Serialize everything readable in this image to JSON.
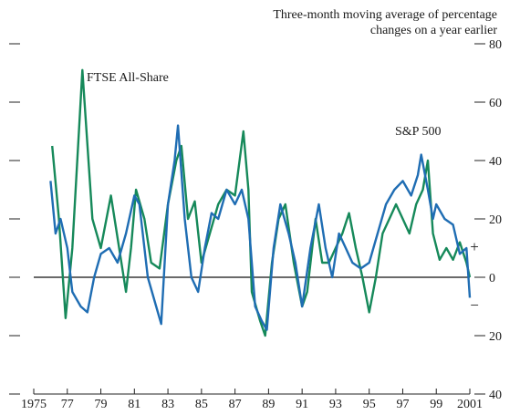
{
  "chart_data": {
    "type": "line",
    "note": [
      "Three-month moving average of percentage",
      "changes on a year earlier"
    ],
    "sign_labels": [
      "+",
      "−"
    ],
    "xlim": [
      1975,
      2001
    ],
    "xticks": [
      {
        "value": 1975,
        "label": "1975"
      },
      {
        "value": 1977,
        "label": "77"
      },
      {
        "value": 1979,
        "label": "79"
      },
      {
        "value": 1981,
        "label": "81"
      },
      {
        "value": 1983,
        "label": "83"
      },
      {
        "value": 1985,
        "label": "85"
      },
      {
        "value": 1987,
        "label": "87"
      },
      {
        "value": 1989,
        "label": "89"
      },
      {
        "value": 1991,
        "label": "91"
      },
      {
        "value": 1993,
        "label": "93"
      },
      {
        "value": 1995,
        "label": "95"
      },
      {
        "value": 1997,
        "label": "97"
      },
      {
        "value": 1999,
        "label": "99"
      },
      {
        "value": 2001,
        "label": "2001"
      }
    ],
    "ylim": [
      -40,
      80
    ],
    "yticks": [
      {
        "value": -40,
        "label": "40"
      },
      {
        "value": -20,
        "label": "20"
      },
      0,
      20,
      40,
      60,
      80
    ],
    "series": [
      {
        "name": "FTSE All-Share",
        "color": "#16895a",
        "x": [
          1976.1,
          1976.5,
          1976.9,
          1977.3,
          1977.9,
          1978.5,
          1979.0,
          1979.6,
          1980.5,
          1980.8,
          1981.1,
          1981.6,
          1982.0,
          1982.5,
          1983.0,
          1983.5,
          1983.8,
          1984.2,
          1984.6,
          1985.0,
          1985.5,
          1986.0,
          1986.5,
          1987.0,
          1987.5,
          1987.8,
          1988.0,
          1988.5,
          1988.8,
          1989.2,
          1989.6,
          1990.0,
          1990.5,
          1991.0,
          1991.3,
          1991.8,
          1992.2,
          1992.6,
          1993.0,
          1993.4,
          1993.8,
          1994.2,
          1994.6,
          1995.0,
          1995.4,
          1995.8,
          1996.2,
          1996.6,
          1997.0,
          1997.4,
          1997.8,
          1998.2,
          1998.5,
          1998.8,
          1999.2,
          1999.6,
          2000.0,
          2000.4,
          2000.8,
          2001.0
        ],
        "values": [
          45,
          20,
          -14,
          10,
          71,
          20,
          10,
          28,
          -5,
          10,
          30,
          20,
          5,
          3,
          25,
          40,
          45,
          20,
          26,
          5,
          15,
          25,
          30,
          28,
          50,
          30,
          -5,
          -15,
          -20,
          5,
          20,
          25,
          5,
          -10,
          -5,
          20,
          5,
          5,
          10,
          15,
          22,
          10,
          0,
          -12,
          0,
          15,
          20,
          25,
          20,
          15,
          25,
          30,
          40,
          15,
          6,
          10,
          6,
          12,
          5,
          0
        ]
      },
      {
        "name": "S&P 500",
        "color": "#1f6db3",
        "x": [
          1976.0,
          1976.3,
          1976.6,
          1977.0,
          1977.3,
          1977.8,
          1978.2,
          1978.6,
          1979.0,
          1979.5,
          1980.0,
          1980.5,
          1981.0,
          1981.3,
          1981.8,
          1982.3,
          1982.6,
          1983.0,
          1983.4,
          1983.6,
          1984.0,
          1984.4,
          1984.8,
          1985.2,
          1985.6,
          1986.0,
          1986.5,
          1987.0,
          1987.4,
          1987.8,
          1988.2,
          1988.6,
          1988.9,
          1989.3,
          1989.7,
          1990.2,
          1990.6,
          1991.0,
          1991.5,
          1992.0,
          1992.4,
          1992.8,
          1993.2,
          1993.6,
          1994.0,
          1994.5,
          1995.0,
          1995.5,
          1996.0,
          1996.5,
          1997.0,
          1997.5,
          1997.9,
          1998.1,
          1998.5,
          1998.8,
          1999.0,
          1999.5,
          2000.0,
          2000.4,
          2000.8,
          2001.0
        ],
        "values": [
          33,
          15,
          20,
          10,
          -5,
          -10,
          -12,
          0,
          8,
          10,
          5,
          15,
          28,
          25,
          0,
          -10,
          -16,
          25,
          40,
          52,
          20,
          0,
          -5,
          10,
          22,
          20,
          30,
          25,
          30,
          20,
          -10,
          -15,
          -18,
          10,
          25,
          15,
          5,
          -10,
          10,
          25,
          10,
          0,
          15,
          10,
          5,
          3,
          5,
          15,
          25,
          30,
          33,
          28,
          35,
          42,
          30,
          20,
          25,
          20,
          18,
          8,
          10,
          -7
        ]
      }
    ]
  }
}
